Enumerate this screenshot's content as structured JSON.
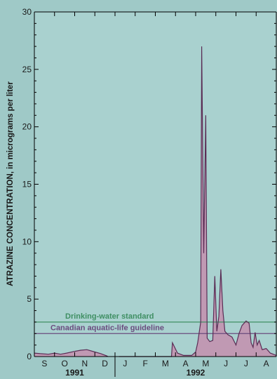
{
  "chart_data": {
    "type": "area",
    "ylabel": "ATRAZINE CONCENTRATION, in micrograms per liter",
    "ylim": [
      0,
      30
    ],
    "yticks": [
      0,
      5,
      10,
      15,
      20,
      25,
      30
    ],
    "xlim": [
      0,
      12
    ],
    "months": [
      {
        "label": "S",
        "x": 0.5
      },
      {
        "label": "O",
        "x": 1.5
      },
      {
        "label": "N",
        "x": 2.5
      },
      {
        "label": "D",
        "x": 3.5
      },
      {
        "label": "J",
        "x": 4.5
      },
      {
        "label": "F",
        "x": 5.5
      },
      {
        "label": "M",
        "x": 6.5
      },
      {
        "label": "A",
        "x": 7.5
      },
      {
        "label": "M",
        "x": 8.5
      },
      {
        "label": "J",
        "x": 9.5
      },
      {
        "label": "J",
        "x": 10.5
      },
      {
        "label": "A",
        "x": 11.5
      }
    ],
    "years": [
      {
        "label": "1991",
        "x": 2.0
      },
      {
        "label": "1992",
        "x": 8.0
      }
    ],
    "year_divider_x": 4.0,
    "thresholds": [
      {
        "name": "Drinking-water standard",
        "value": 3,
        "color": "#3f8f63"
      },
      {
        "name": "Canadian aquatic-life guideline",
        "value": 2,
        "color": "#6a4b7e"
      }
    ],
    "segments": [
      {
        "points": [
          [
            0.0,
            0.3
          ],
          [
            0.3,
            0.25
          ],
          [
            0.7,
            0.2
          ],
          [
            1.0,
            0.3
          ],
          [
            1.3,
            0.2
          ],
          [
            1.6,
            0.3
          ],
          [
            2.0,
            0.45
          ],
          [
            2.3,
            0.55
          ],
          [
            2.6,
            0.6
          ],
          [
            3.0,
            0.4
          ],
          [
            3.3,
            0.25
          ],
          [
            3.6,
            0.05
          ],
          [
            3.65,
            0.0
          ]
        ]
      },
      {
        "points": [
          [
            4.2,
            0.0
          ],
          [
            6.0,
            0.0
          ],
          [
            6.8,
            0.0
          ],
          [
            6.85,
            1.2
          ],
          [
            7.1,
            0.3
          ],
          [
            7.4,
            0.1
          ],
          [
            7.8,
            0.1
          ],
          [
            8.0,
            0.4
          ],
          [
            8.1,
            1.2
          ],
          [
            8.25,
            3.0
          ],
          [
            8.3,
            27.0
          ],
          [
            8.4,
            9.0
          ],
          [
            8.5,
            21.0
          ],
          [
            8.57,
            1.6
          ],
          [
            8.7,
            1.3
          ],
          [
            8.85,
            1.4
          ],
          [
            8.95,
            7.0
          ],
          [
            9.05,
            2.2
          ],
          [
            9.15,
            3.5
          ],
          [
            9.25,
            7.6
          ],
          [
            9.35,
            4.0
          ],
          [
            9.45,
            2.2
          ],
          [
            9.6,
            1.9
          ],
          [
            9.8,
            1.7
          ],
          [
            10.0,
            1.0
          ],
          [
            10.15,
            2.0
          ],
          [
            10.3,
            2.7
          ],
          [
            10.5,
            3.1
          ],
          [
            10.65,
            2.9
          ],
          [
            10.75,
            1.2
          ],
          [
            10.85,
            0.8
          ],
          [
            10.95,
            2.1
          ],
          [
            11.05,
            1.0
          ],
          [
            11.15,
            1.4
          ],
          [
            11.3,
            0.6
          ],
          [
            11.5,
            0.7
          ],
          [
            11.7,
            0.3
          ],
          [
            11.85,
            0.2
          ],
          [
            12.0,
            0.1
          ]
        ]
      }
    ],
    "fill_color": "#c099b3",
    "line_color": "#5a2d55",
    "grid": false,
    "legend": "inline labels on threshold lines"
  }
}
